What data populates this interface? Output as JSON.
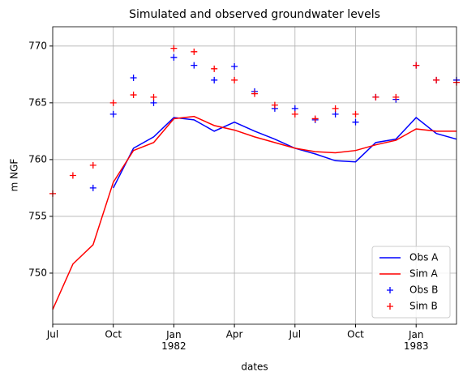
{
  "chart_data": {
    "type": "line",
    "title": "Simulated and observed groundwater levels",
    "xlabel": "dates",
    "ylabel": "m NGF",
    "x": [
      "1981-07",
      "1981-08",
      "1981-09",
      "1981-10",
      "1981-11",
      "1981-12",
      "1982-01",
      "1982-02",
      "1982-03",
      "1982-04",
      "1982-05",
      "1982-06",
      "1982-07",
      "1982-08",
      "1982-09",
      "1982-10",
      "1982-11",
      "1982-12",
      "1983-01",
      "1983-02",
      "1983-03"
    ],
    "series": [
      {
        "name": "Obs A",
        "color": "#0000ff",
        "style": "line",
        "values": [
          null,
          null,
          null,
          757.5,
          761,
          762,
          763.7,
          763.5,
          762.5,
          763.3,
          762.5,
          761.8,
          761,
          760.5,
          759.9,
          759.8,
          761.5,
          761.8,
          763.7,
          762.3,
          761.8
        ]
      },
      {
        "name": "Sim A",
        "color": "#ff0000",
        "style": "line",
        "values": [
          746.8,
          750.8,
          752.5,
          758,
          760.8,
          761.5,
          763.6,
          763.8,
          763,
          762.6,
          762,
          761.5,
          761,
          760.7,
          760.6,
          760.8,
          761.3,
          761.7,
          762.7,
          762.5,
          762.5
        ]
      },
      {
        "name": "Obs B",
        "color": "#0000ff",
        "style": "marker",
        "values": [
          null,
          null,
          757.5,
          764,
          767.2,
          765,
          769,
          768.3,
          767,
          768.2,
          766,
          764.5,
          764.5,
          763.5,
          764,
          763.3,
          765.5,
          765.3,
          768.3,
          767,
          767
        ]
      },
      {
        "name": "Sim B",
        "color": "#ff0000",
        "style": "marker",
        "values": [
          757,
          758.6,
          759.5,
          765,
          765.7,
          765.5,
          769.8,
          769.5,
          768,
          767,
          765.8,
          764.8,
          764,
          763.6,
          764.5,
          764,
          765.5,
          765.5,
          768.3,
          767,
          766.8
        ]
      }
    ],
    "xlim": [
      "1981-07",
      "1983-03"
    ],
    "xticks": [
      {
        "value": "1981-07",
        "label": "Jul"
      },
      {
        "value": "1981-10",
        "label": "Oct"
      },
      {
        "value": "1982-01",
        "label": "Jan\n1982"
      },
      {
        "value": "1982-04",
        "label": "Apr"
      },
      {
        "value": "1982-07",
        "label": "Jul"
      },
      {
        "value": "1982-10",
        "label": "Oct"
      },
      {
        "value": "1983-01",
        "label": "Jan\n1983"
      }
    ],
    "ylim": [
      745.5,
      771.7
    ],
    "yticks": [
      750,
      755,
      760,
      765,
      770
    ],
    "grid": true,
    "legend": "lower right"
  }
}
